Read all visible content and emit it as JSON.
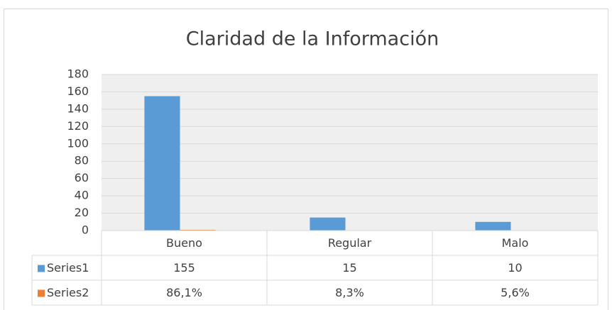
{
  "chart_data": {
    "type": "bar",
    "title": "Claridad de la Información",
    "categories": [
      "Bueno",
      "Regular",
      "Malo"
    ],
    "series": [
      {
        "name": "Series1",
        "color": "#5b9bd5",
        "values": [
          155,
          15,
          10
        ]
      },
      {
        "name": "Series2",
        "color": "#ed7d31",
        "values": [
          0.861,
          0.083,
          0.056
        ],
        "value_labels": [
          "86,1%",
          "8,3%",
          "5,6%"
        ]
      }
    ],
    "ylim": [
      0,
      180
    ],
    "yticks": [
      0,
      20,
      40,
      60,
      80,
      100,
      120,
      140,
      160,
      180
    ],
    "grid": true
  }
}
